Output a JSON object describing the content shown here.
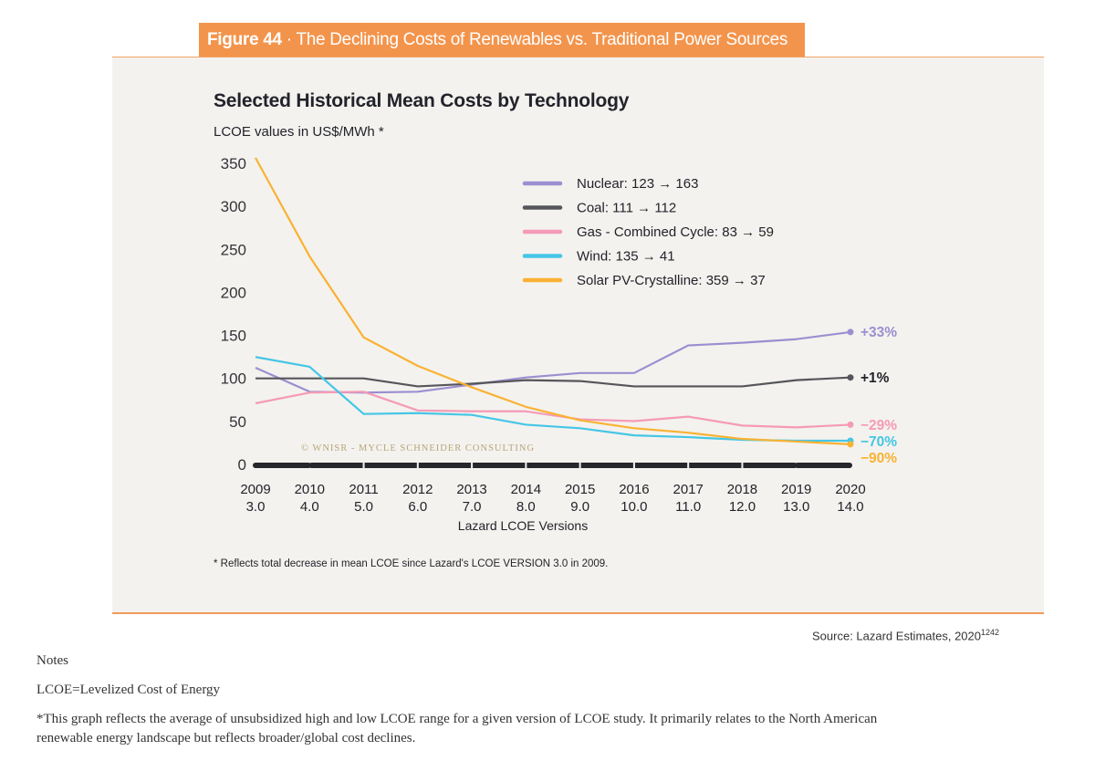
{
  "figure": {
    "number_label": "Figure 44",
    "separator": " · ",
    "title": "The Declining Costs of Renewables vs. Traditional Power Sources"
  },
  "chart_data": {
    "type": "line",
    "title": "Selected Historical Mean Costs by Technology",
    "ylabel": "LCOE values in US$/MWh *",
    "xlabel": "Lazard LCOE Versions",
    "ylim": [
      0,
      350
    ],
    "yticks": [
      "0",
      "50",
      "100",
      "150",
      "200",
      "250",
      "300",
      "350"
    ],
    "x": [
      "2009",
      "2010",
      "2011",
      "2012",
      "2013",
      "2014",
      "2015",
      "2016",
      "2017",
      "2018",
      "2019",
      "2020"
    ],
    "x_versions": [
      "3.0",
      "4.0",
      "5.0",
      "6.0",
      "7.0",
      "8.0",
      "9.0",
      "10.0",
      "11.0",
      "12.0",
      "13.0",
      "14.0"
    ],
    "legend_position": "top-right",
    "grid": false,
    "series": [
      {
        "name": "Nuclear",
        "legend": "Nuclear: 123 → 163",
        "color": "#9b8fd1",
        "end_label": "+33%",
        "values": [
          123,
          96,
          95,
          96,
          104,
          112,
          117,
          117,
          148,
          151,
          155,
          163
        ]
      },
      {
        "name": "Coal",
        "legend": "Coal: 111 → 112",
        "color": "#55565b",
        "end_label": "+1%",
        "end_label_color": "#22232b",
        "values": [
          111,
          111,
          111,
          102,
          105,
          109,
          108,
          102,
          102,
          102,
          109,
          112
        ]
      },
      {
        "name": "Gas - Combined Cycle",
        "legend": "Gas - Combined Cycle: 83 → 59",
        "color": "#f59ab8",
        "end_label": "−29%",
        "values": [
          83,
          95,
          96,
          75,
          74,
          74,
          65,
          63,
          68,
          58,
          56,
          59
        ]
      },
      {
        "name": "Wind",
        "legend": "Wind: 135 → 41",
        "color": "#45c6e6",
        "end_label": "−70%",
        "values": [
          135,
          124,
          71,
          72,
          70,
          59,
          55,
          47,
          45,
          42,
          41,
          41
        ]
      },
      {
        "name": "Solar PV-Crystalline",
        "legend": "Solar PV-Crystalline: 359 → 37",
        "color": "#f9b233",
        "end_label": "−90%",
        "values": [
          359,
          248,
          157,
          125,
          101,
          79,
          64,
          55,
          50,
          43,
          40,
          37
        ]
      }
    ],
    "watermark": "© WNISR - Mycle Schneider Consulting"
  },
  "footnote": "* Reflects total decrease in mean LCOE since Lazard's  LCOE VERSION 3.0 in 2009.",
  "source": {
    "text": "Source: Lazard Estimates, 2020",
    "ref": "1242"
  },
  "notes": {
    "heading": "Notes",
    "line1": "LCOE=Levelized Cost of Energy",
    "line2": "*This graph reflects the average of unsubsidized high and low LCOE range for a given version of LCOE study. It primarily relates to the North American",
    "line3": "renewable energy landscape but reflects broader/global cost declines."
  }
}
